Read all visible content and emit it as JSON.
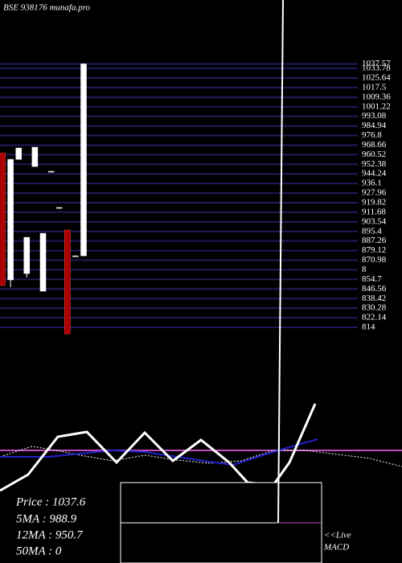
{
  "chart_data": {
    "type": "candlestick",
    "title": "BSE 938176  munafa.pro",
    "candles": [
      {
        "open": 962,
        "high": 962,
        "low": 849.5,
        "close": 849.5
      },
      {
        "open": 854.3,
        "high": 956.6,
        "low": 848.1,
        "close": 956.6
      },
      {
        "open": 956.6,
        "high": 966.2,
        "low": 956.6,
        "close": 966.2
      },
      {
        "open": 859.7,
        "high": 890.4,
        "low": 856.3,
        "close": 890.4
      },
      {
        "open": 950.5,
        "high": 966.9,
        "low": 950.5,
        "close": 966.9
      },
      {
        "open": 844.7,
        "high": 893.8,
        "low": 844.7,
        "close": 893.8
      },
      {
        "open": 946.4,
        "high": 946.4,
        "low": 946.4,
        "close": 946.4
      },
      {
        "open": 915.7,
        "high": 915.7,
        "low": 915.7,
        "close": 915.7
      },
      {
        "open": 896.6,
        "high": 896.6,
        "low": 808.5,
        "close": 808.5
      },
      {
        "open": 874.7,
        "high": 874.7,
        "low": 874.7,
        "close": 874.7
      },
      {
        "open": 874.7,
        "high": 1037.6,
        "low": 874.7,
        "close": 1037.6
      }
    ],
    "up_color": "#ffffff",
    "down_color": "#aa0000",
    "grid_color": "#1c1c5c",
    "ylim": [
      814,
      1037.57
    ],
    "yticks": [
      1037.57,
      1033.78,
      1025.64,
      1017.5,
      1009.36,
      1001.22,
      993.08,
      984.94,
      976.8,
      968.66,
      960.52,
      952.38,
      944.24,
      936.1,
      927.96,
      919.82,
      911.68,
      903.54,
      895.4,
      887.26,
      879.12,
      870.98,
      {
        "value": 862.84,
        "label": "8"
      },
      854.7,
      846.56,
      838.42,
      830.28,
      822.14,
      814
    ],
    "grid": true,
    "info": [
      "Price   : 1037.6",
      "5MA : 988.9",
      "12MA : 950.7",
      "50MA : 0"
    ],
    "live": "<<Live",
    "macd": "MACD"
  }
}
